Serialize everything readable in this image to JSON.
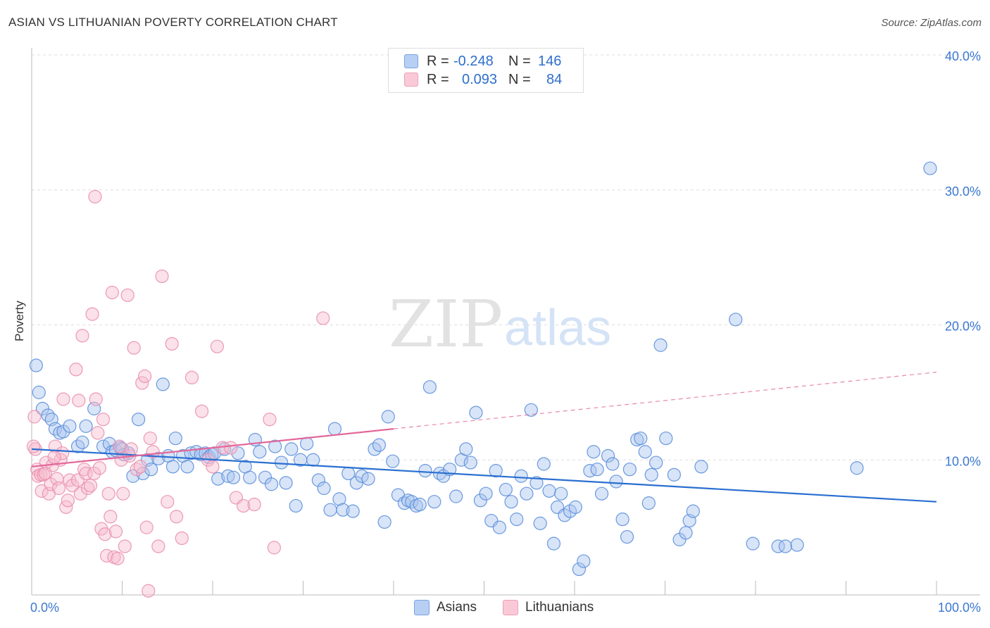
{
  "title": "ASIAN VS LITHUANIAN POVERTY CORRELATION CHART",
  "source": "Source: ZipAtlas.com",
  "watermark": {
    "zip": "ZIP",
    "atlas": "atlas"
  },
  "legend": {
    "rows": [
      {
        "r_label": "R =",
        "r_value": "-0.248",
        "n_label": "N =",
        "n_value": "146",
        "color": "#7aa3e0"
      },
      {
        "r_label": "R =",
        "r_value": "0.093",
        "n_label": "N =",
        "n_value": "84",
        "color": "#eea0b9"
      }
    ]
  },
  "bottom_legend": {
    "asians": "Asians",
    "lithuanians": "Lithuanians"
  },
  "chart_data": {
    "type": "scatter",
    "xlabel": "",
    "ylabel": "Poverty",
    "xlim": [
      0,
      100
    ],
    "ylim": [
      0,
      40
    ],
    "x_tick_labels": [
      "0.0%",
      "100.0%"
    ],
    "y_ticks": [
      10,
      20,
      30,
      40
    ],
    "y_tick_labels": [
      "10.0%",
      "20.0%",
      "30.0%",
      "40.0%"
    ],
    "grid": true,
    "legend_position": "top-center",
    "series": [
      {
        "name": "Asians",
        "color": "#5b8fdc",
        "fill": "#a9c4ee",
        "trend": {
          "x": [
            0,
            100
          ],
          "y": [
            10.8,
            6.9
          ],
          "dashed_from": null
        },
        "points": [
          [
            0.5,
            17.0
          ],
          [
            0.8,
            15.0
          ],
          [
            1.2,
            13.8
          ],
          [
            1.8,
            13.3
          ],
          [
            2.2,
            13.0
          ],
          [
            2.6,
            12.3
          ],
          [
            3.1,
            12.0
          ],
          [
            3.5,
            12.1
          ],
          [
            4.2,
            12.5
          ],
          [
            5.1,
            11.0
          ],
          [
            5.6,
            11.3
          ],
          [
            6.0,
            12.5
          ],
          [
            6.9,
            13.8
          ],
          [
            7.9,
            11.0
          ],
          [
            8.6,
            11.2
          ],
          [
            8.9,
            10.6
          ],
          [
            9.3,
            10.7
          ],
          [
            9.8,
            10.9
          ],
          [
            10.2,
            10.4
          ],
          [
            10.7,
            10.5
          ],
          [
            11.2,
            8.8
          ],
          [
            11.8,
            13.0
          ],
          [
            12.3,
            9.0
          ],
          [
            12.8,
            10.0
          ],
          [
            13.2,
            9.3
          ],
          [
            14.0,
            10.1
          ],
          [
            14.5,
            15.6
          ],
          [
            15.1,
            10.3
          ],
          [
            15.6,
            9.5
          ],
          [
            15.9,
            11.6
          ],
          [
            16.7,
            10.3
          ],
          [
            17.2,
            9.5
          ],
          [
            17.6,
            10.5
          ],
          [
            18.2,
            10.6
          ],
          [
            18.7,
            10.4
          ],
          [
            19.2,
            10.5
          ],
          [
            19.6,
            10.2
          ],
          [
            19.9,
            10.4
          ],
          [
            20.2,
            10.5
          ],
          [
            20.6,
            8.6
          ],
          [
            21.3,
            10.8
          ],
          [
            21.7,
            8.8
          ],
          [
            22.3,
            8.7
          ],
          [
            22.8,
            10.5
          ],
          [
            23.6,
            9.5
          ],
          [
            24.1,
            8.7
          ],
          [
            24.7,
            11.5
          ],
          [
            25.2,
            10.6
          ],
          [
            25.8,
            8.7
          ],
          [
            26.5,
            8.2
          ],
          [
            26.9,
            11.0
          ],
          [
            27.6,
            9.8
          ],
          [
            28.1,
            8.3
          ],
          [
            28.7,
            10.8
          ],
          [
            29.2,
            6.6
          ],
          [
            29.7,
            10.0
          ],
          [
            30.4,
            11.2
          ],
          [
            31.1,
            10.0
          ],
          [
            31.7,
            8.5
          ],
          [
            32.3,
            7.9
          ],
          [
            33.0,
            6.3
          ],
          [
            33.5,
            12.3
          ],
          [
            34.0,
            7.1
          ],
          [
            34.4,
            6.3
          ],
          [
            35.0,
            9.0
          ],
          [
            35.5,
            6.2
          ],
          [
            35.9,
            8.3
          ],
          [
            36.5,
            8.8
          ],
          [
            37.2,
            8.6
          ],
          [
            37.9,
            10.8
          ],
          [
            38.4,
            11.1
          ],
          [
            39.0,
            5.4
          ],
          [
            39.4,
            13.2
          ],
          [
            39.9,
            9.9
          ],
          [
            40.5,
            7.4
          ],
          [
            41.2,
            6.8
          ],
          [
            41.6,
            7.0
          ],
          [
            42.0,
            6.9
          ],
          [
            42.5,
            6.6
          ],
          [
            42.9,
            6.7
          ],
          [
            43.5,
            9.2
          ],
          [
            44.0,
            15.4
          ],
          [
            44.5,
            6.9
          ],
          [
            45.1,
            9.0
          ],
          [
            45.5,
            8.8
          ],
          [
            46.2,
            9.3
          ],
          [
            46.9,
            7.3
          ],
          [
            47.5,
            10.0
          ],
          [
            48.0,
            10.8
          ],
          [
            48.5,
            9.8
          ],
          [
            49.1,
            13.5
          ],
          [
            49.6,
            7.0
          ],
          [
            50.2,
            7.5
          ],
          [
            50.8,
            5.5
          ],
          [
            51.3,
            9.2
          ],
          [
            51.7,
            5.0
          ],
          [
            52.4,
            7.8
          ],
          [
            53.0,
            6.9
          ],
          [
            53.6,
            5.6
          ],
          [
            54.1,
            8.8
          ],
          [
            54.7,
            7.5
          ],
          [
            55.2,
            13.7
          ],
          [
            55.8,
            8.3
          ],
          [
            56.2,
            5.3
          ],
          [
            56.6,
            9.7
          ],
          [
            57.2,
            7.7
          ],
          [
            57.7,
            3.8
          ],
          [
            58.1,
            6.5
          ],
          [
            58.5,
            7.5
          ],
          [
            58.9,
            5.9
          ],
          [
            59.5,
            6.2
          ],
          [
            60.1,
            6.5
          ],
          [
            60.5,
            1.9
          ],
          [
            61.0,
            2.5
          ],
          [
            61.7,
            9.2
          ],
          [
            62.1,
            10.6
          ],
          [
            62.5,
            9.3
          ],
          [
            63.0,
            7.5
          ],
          [
            63.7,
            10.3
          ],
          [
            64.2,
            9.7
          ],
          [
            64.6,
            8.4
          ],
          [
            65.3,
            5.6
          ],
          [
            65.8,
            4.3
          ],
          [
            66.1,
            9.3
          ],
          [
            66.9,
            11.5
          ],
          [
            67.3,
            11.6
          ],
          [
            67.8,
            10.6
          ],
          [
            68.2,
            6.8
          ],
          [
            68.5,
            8.9
          ],
          [
            69.0,
            9.8
          ],
          [
            69.5,
            18.5
          ],
          [
            70.1,
            11.6
          ],
          [
            71.0,
            8.9
          ],
          [
            71.6,
            4.1
          ],
          [
            72.3,
            4.6
          ],
          [
            72.7,
            5.5
          ],
          [
            73.1,
            6.2
          ],
          [
            74.0,
            9.5
          ],
          [
            77.8,
            20.4
          ],
          [
            79.7,
            3.8
          ],
          [
            82.5,
            3.6
          ],
          [
            83.3,
            3.6
          ],
          [
            84.6,
            3.7
          ],
          [
            91.2,
            9.4
          ],
          [
            99.3,
            31.6
          ],
          [
            10.0,
            10.8
          ]
        ]
      },
      {
        "name": "Lithuanians",
        "color": "#ea8fae",
        "fill": "#f6bccf",
        "trend": {
          "x": [
            0,
            100
          ],
          "y": [
            9.5,
            16.5
          ],
          "dashed_from": 40
        },
        "points": [
          [
            0.3,
            13.2
          ],
          [
            0.4,
            10.8
          ],
          [
            0.6,
            9.3
          ],
          [
            0.7,
            8.8
          ],
          [
            1.0,
            8.9
          ],
          [
            1.1,
            7.7
          ],
          [
            1.3,
            8.9
          ],
          [
            1.6,
            9.8
          ],
          [
            1.9,
            7.5
          ],
          [
            2.1,
            8.2
          ],
          [
            2.3,
            9.6
          ],
          [
            2.6,
            11.0
          ],
          [
            2.8,
            8.6
          ],
          [
            3.0,
            7.9
          ],
          [
            3.2,
            10.0
          ],
          [
            3.4,
            10.5
          ],
          [
            3.5,
            14.5
          ],
          [
            3.8,
            6.5
          ],
          [
            4.0,
            7.0
          ],
          [
            4.2,
            8.5
          ],
          [
            4.5,
            8.1
          ],
          [
            4.9,
            16.7
          ],
          [
            5.1,
            8.5
          ],
          [
            5.2,
            14.4
          ],
          [
            5.4,
            7.5
          ],
          [
            5.6,
            19.2
          ],
          [
            5.8,
            9.3
          ],
          [
            6.0,
            9.0
          ],
          [
            6.2,
            7.9
          ],
          [
            6.5,
            8.1
          ],
          [
            6.7,
            20.8
          ],
          [
            6.9,
            9.0
          ],
          [
            7.1,
            14.5
          ],
          [
            7.3,
            12.0
          ],
          [
            7.5,
            9.4
          ],
          [
            7.7,
            4.9
          ],
          [
            7.9,
            13.0
          ],
          [
            8.1,
            4.5
          ],
          [
            8.3,
            2.9
          ],
          [
            8.5,
            7.5
          ],
          [
            8.7,
            5.8
          ],
          [
            8.9,
            22.4
          ],
          [
            9.1,
            2.8
          ],
          [
            9.3,
            4.7
          ],
          [
            9.5,
            2.7
          ],
          [
            9.7,
            11.0
          ],
          [
            9.9,
            10.0
          ],
          [
            10.1,
            7.5
          ],
          [
            10.3,
            3.6
          ],
          [
            10.6,
            22.2
          ],
          [
            10.8,
            10.3
          ],
          [
            11.0,
            10.8
          ],
          [
            11.3,
            18.3
          ],
          [
            11.6,
            9.3
          ],
          [
            12.0,
            9.5
          ],
          [
            12.2,
            15.7
          ],
          [
            12.5,
            16.2
          ],
          [
            12.7,
            5.0
          ],
          [
            12.9,
            0.3
          ],
          [
            13.1,
            11.6
          ],
          [
            13.4,
            10.6
          ],
          [
            14.0,
            3.6
          ],
          [
            14.4,
            23.6
          ],
          [
            15.0,
            6.9
          ],
          [
            15.5,
            18.6
          ],
          [
            16.0,
            5.8
          ],
          [
            16.6,
            4.2
          ],
          [
            17.7,
            16.1
          ],
          [
            18.8,
            13.6
          ],
          [
            19.5,
            10.0
          ],
          [
            20.0,
            9.5
          ],
          [
            20.5,
            18.4
          ],
          [
            21.1,
            10.9
          ],
          [
            22.0,
            10.9
          ],
          [
            22.6,
            7.2
          ],
          [
            23.4,
            6.6
          ],
          [
            24.6,
            6.7
          ],
          [
            26.3,
            13.0
          ],
          [
            26.8,
            3.5
          ],
          [
            32.2,
            20.5
          ],
          [
            7.0,
            29.5
          ],
          [
            0.2,
            11.0
          ],
          [
            1.5,
            9.0
          ],
          [
            2.5,
            10.2
          ]
        ]
      }
    ]
  }
}
